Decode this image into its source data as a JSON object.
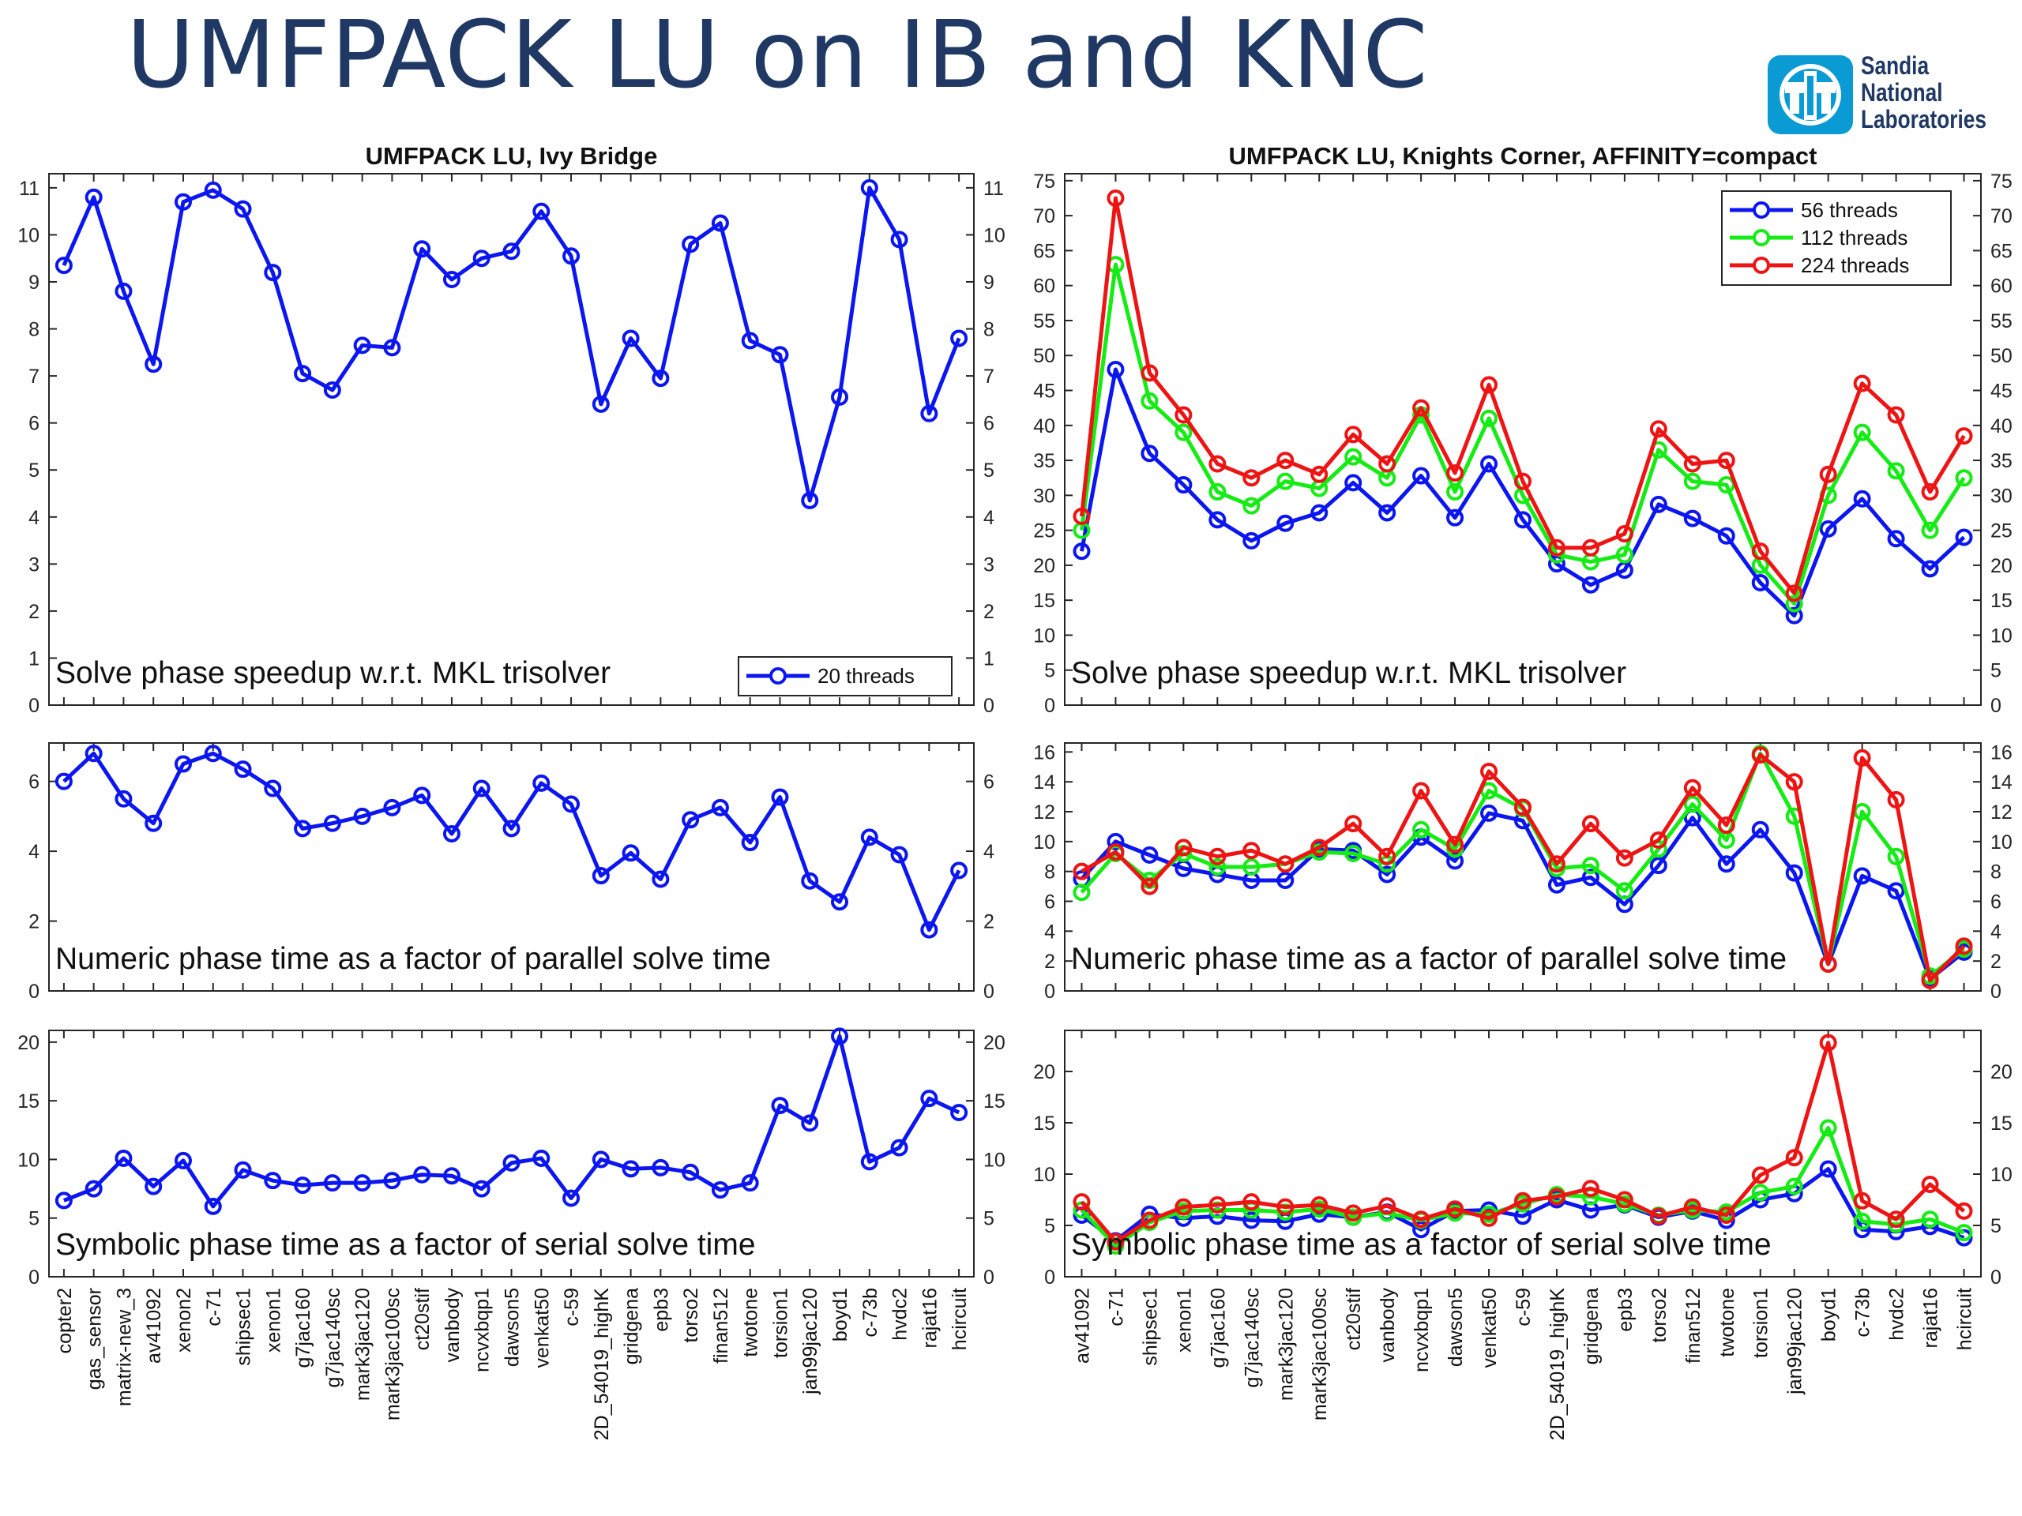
{
  "page": {
    "title": "UMFPACK LU on IB and KNC",
    "logo": {
      "line1": "Sandia",
      "line2": "National",
      "line3": "Laboratories",
      "icon": "sandia-thunderbird-icon"
    }
  },
  "colors": {
    "blue": "#0b16f0",
    "green": "#14ec14",
    "red": "#ee1414",
    "title_text": "#1f3864",
    "logo": "#0a9bd4"
  },
  "chart_data": [
    {
      "id": "ib-solve",
      "type": "line",
      "title": "UMFPACK LU, Ivy Bridge",
      "annotation": "Solve phase speedup w.r.t. MKL trisolver",
      "legend": [
        "20 threads"
      ],
      "legend_position": "bottom-right",
      "ylim": [
        0,
        11.3
      ],
      "yticks": [
        0,
        1,
        2,
        3,
        4,
        5,
        6,
        7,
        8,
        9,
        10,
        11
      ],
      "categories": [
        "copter2",
        "gas_sensor",
        "matrix-new_3",
        "av41092",
        "xenon2",
        "c-71",
        "shipsec1",
        "xenon1",
        "g7jac160",
        "g7jac140sc",
        "mark3jac120",
        "mark3jac100sc",
        "ct20stif",
        "vanbody",
        "ncvxbqp1",
        "dawson5",
        "venkat50",
        "c-59",
        "2D_54019_highK",
        "gridgena",
        "epb3",
        "torso2",
        "finan512",
        "twotone",
        "torsion1",
        "jan99jac120",
        "boyd1",
        "c-73b",
        "hvdc2",
        "rajat16",
        "hcircuit"
      ],
      "series": [
        {
          "name": "20 threads",
          "color": "blue",
          "values": [
            9.35,
            10.8,
            8.8,
            7.25,
            10.7,
            10.95,
            10.55,
            9.2,
            7.05,
            6.7,
            7.65,
            7.6,
            9.7,
            9.05,
            9.5,
            9.65,
            10.5,
            9.55,
            6.4,
            7.8,
            6.95,
            9.8,
            10.25,
            7.75,
            7.45,
            4.35,
            6.55,
            11.0,
            9.9,
            6.2,
            7.8
          ]
        }
      ]
    },
    {
      "id": "ib-numeric",
      "type": "line",
      "annotation": "Numeric phase time as a factor of parallel solve time",
      "ylim": [
        0,
        7.1
      ],
      "yticks": [
        0,
        2,
        4,
        6
      ],
      "series": [
        {
          "name": "20 threads",
          "color": "blue",
          "values": [
            6.0,
            6.8,
            5.5,
            4.8,
            6.5,
            6.8,
            6.35,
            5.8,
            4.65,
            4.8,
            5.0,
            5.25,
            5.6,
            4.5,
            5.8,
            4.65,
            5.95,
            5.35,
            3.3,
            3.95,
            3.2,
            4.9,
            5.25,
            4.25,
            5.55,
            3.15,
            2.55,
            4.4,
            3.9,
            1.75,
            3.45
          ]
        }
      ]
    },
    {
      "id": "ib-symbolic",
      "type": "line",
      "annotation": "Symbolic phase time as a factor of serial solve time",
      "ylim": [
        0,
        21
      ],
      "yticks": [
        0,
        5,
        10,
        15,
        20
      ],
      "series": [
        {
          "name": "20 threads",
          "color": "blue",
          "values": [
            6.5,
            7.5,
            10.1,
            7.7,
            9.9,
            6.0,
            9.1,
            8.2,
            7.8,
            8.0,
            8.0,
            8.2,
            8.7,
            8.6,
            7.5,
            9.7,
            10.1,
            6.7,
            10.0,
            9.2,
            9.3,
            8.9,
            7.4,
            8.0,
            14.6,
            13.1,
            20.5,
            9.8,
            11.0,
            15.2,
            14.0
          ]
        }
      ]
    },
    {
      "id": "knc-solve",
      "type": "line",
      "title": "UMFPACK LU, Knights Corner, AFFINITY=compact",
      "annotation": "Solve phase speedup w.r.t. MKL trisolver",
      "legend": [
        "56 threads",
        "112 threads",
        "224 threads"
      ],
      "legend_position": "top-right",
      "ylim": [
        0,
        76
      ],
      "yticks": [
        0,
        5,
        10,
        15,
        20,
        25,
        30,
        35,
        40,
        45,
        50,
        55,
        60,
        65,
        70,
        75
      ],
      "categories": [
        "av41092",
        "c-71",
        "shipsec1",
        "xenon1",
        "g7jac160",
        "g7jac140sc",
        "mark3jac120",
        "mark3jac100sc",
        "ct20stif",
        "vanbody",
        "ncvxbqp1",
        "dawson5",
        "venkat50",
        "c-59",
        "2D_54019_highK",
        "gridgena",
        "epb3",
        "torso2",
        "finan512",
        "twotone",
        "torsion1",
        "jan99jac120",
        "boyd1",
        "c-73b",
        "hvdc2",
        "rajat16",
        "hcircuit"
      ],
      "series": [
        {
          "name": "56 threads",
          "color": "blue",
          "values": [
            22,
            48,
            36,
            31.5,
            26.5,
            23.5,
            26,
            27.5,
            31.8,
            27.5,
            32.8,
            26.8,
            34.5,
            26.5,
            20.2,
            17.2,
            19.3,
            28.7,
            26.7,
            24.2,
            17.5,
            12.8,
            25.2,
            29.5,
            23.8,
            19.5,
            24
          ]
        },
        {
          "name": "112 threads",
          "color": "green",
          "values": [
            25,
            63,
            43.5,
            39,
            30.5,
            28.5,
            32,
            31,
            35.5,
            32.5,
            41.5,
            30.5,
            41,
            30,
            21.5,
            20.5,
            21.5,
            36.5,
            32,
            31.5,
            20,
            14.5,
            30,
            39,
            33.5,
            25,
            32.5
          ]
        },
        {
          "name": "224 threads",
          "color": "red",
          "values": [
            27,
            72.5,
            47.5,
            41.5,
            34.5,
            32.5,
            35,
            33,
            38.7,
            34.5,
            42.5,
            33.2,
            45.8,
            32,
            22.5,
            22.5,
            24.5,
            39.5,
            34.5,
            35,
            22,
            16,
            33,
            46,
            41.5,
            30.5,
            38.5
          ]
        }
      ]
    },
    {
      "id": "knc-numeric",
      "type": "line",
      "annotation": "Numeric phase time as a factor of parallel solve time",
      "ylim": [
        0,
        16.6
      ],
      "yticks": [
        0,
        2,
        4,
        6,
        8,
        10,
        12,
        14,
        16
      ],
      "series": [
        {
          "name": "56 threads",
          "color": "blue",
          "values": [
            7.5,
            10,
            9.1,
            8.2,
            7.8,
            7.4,
            7.4,
            9.5,
            9.4,
            7.8,
            10.3,
            8.7,
            11.9,
            11.4,
            7.1,
            7.6,
            5.8,
            8.4,
            11.6,
            8.5,
            10.8,
            7.9,
            1.8,
            7.7,
            6.7,
            0.8,
            2.6
          ]
        },
        {
          "name": "112 threads",
          "color": "green",
          "values": [
            6.6,
            9.2,
            7.4,
            9.2,
            8.3,
            8.3,
            8.5,
            9.3,
            9.2,
            8.5,
            10.8,
            9.5,
            13.4,
            12.2,
            8.2,
            8.4,
            6.7,
            9.5,
            12.5,
            10.1,
            15.9,
            11.7,
            1.8,
            12.0,
            9.0,
            1.0,
            2.8
          ]
        },
        {
          "name": "224 threads",
          "color": "red",
          "values": [
            8.0,
            9.3,
            7.0,
            9.6,
            9.0,
            9.4,
            8.5,
            9.6,
            11.2,
            9.0,
            13.4,
            9.8,
            14.7,
            12.3,
            8.5,
            11.2,
            8.9,
            10.1,
            13.6,
            11.1,
            15.8,
            14.0,
            1.8,
            15.6,
            12.8,
            0.7,
            3.0
          ]
        }
      ]
    },
    {
      "id": "knc-symbolic",
      "type": "line",
      "annotation": "Symbolic phase time as a factor of serial solve time",
      "ylim": [
        0,
        24
      ],
      "yticks": [
        0,
        5,
        10,
        15,
        20
      ],
      "series": [
        {
          "name": "56 threads",
          "color": "blue",
          "values": [
            6.0,
            3.5,
            6.1,
            5.7,
            5.9,
            5.5,
            5.4,
            6.1,
            5.8,
            6.3,
            4.6,
            6.4,
            6.5,
            5.9,
            7.5,
            6.5,
            7.0,
            5.8,
            6.4,
            5.5,
            7.5,
            8.1,
            10.5,
            4.6,
            4.4,
            4.9,
            3.8
          ]
        },
        {
          "name": "112 threads",
          "color": "green",
          "values": [
            6.5,
            3.0,
            5.3,
            6.4,
            6.5,
            6.5,
            6.3,
            6.6,
            5.8,
            6.2,
            5.5,
            6.2,
            6.1,
            7.1,
            8.0,
            7.8,
            7.1,
            6.0,
            6.5,
            6.3,
            8.2,
            8.8,
            14.5,
            5.4,
            5.1,
            5.6,
            4.3
          ]
        },
        {
          "name": "224 threads",
          "color": "red",
          "values": [
            7.3,
            3.4,
            5.5,
            6.8,
            7.0,
            7.3,
            6.8,
            7.0,
            6.2,
            6.9,
            5.6,
            6.6,
            5.7,
            7.4,
            7.8,
            8.6,
            7.5,
            5.9,
            6.8,
            6.0,
            9.9,
            11.6,
            22.8,
            7.4,
            5.6,
            9.0,
            6.4
          ]
        }
      ]
    }
  ]
}
